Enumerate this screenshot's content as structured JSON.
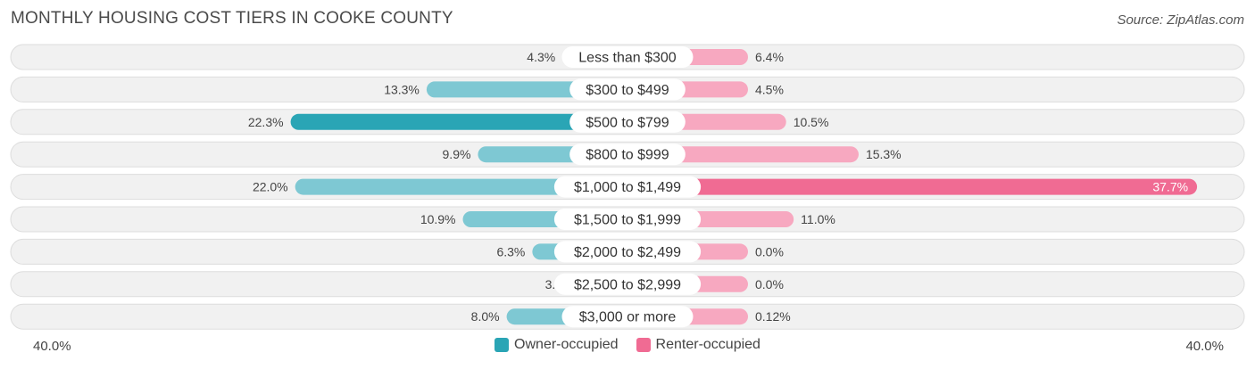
{
  "title": "MONTHLY HOUSING COST TIERS IN COOKE COUNTY",
  "source": "Source: ZipAtlas.com",
  "colors": {
    "owner_dark": "#2aa5b5",
    "owner_light": "#7ec8d3",
    "renter_dark": "#f06b93",
    "renter_light": "#f7a8c0",
    "row_bg": "#f1f1f1",
    "row_border": "#dddddd"
  },
  "chart_data": {
    "type": "bar",
    "orientation": "horizontal-diverging",
    "categories": [
      "Less than $300",
      "$300 to $499",
      "$500 to $799",
      "$800 to $999",
      "$1,000 to $1,499",
      "$1,500 to $1,999",
      "$2,000 to $2,499",
      "$2,500 to $2,999",
      "$3,000 or more"
    ],
    "series": [
      {
        "name": "Owner-occupied",
        "values": [
          4.3,
          13.3,
          22.3,
          9.9,
          22.0,
          10.9,
          6.3,
          3.1,
          8.0
        ],
        "labels": [
          "4.3%",
          "13.3%",
          "22.3%",
          "9.9%",
          "22.0%",
          "10.9%",
          "6.3%",
          "3.1%",
          "8.0%"
        ]
      },
      {
        "name": "Renter-occupied",
        "values": [
          6.4,
          4.5,
          10.5,
          15.3,
          37.7,
          11.0,
          0.0,
          0.0,
          0.12
        ],
        "labels": [
          "6.4%",
          "4.5%",
          "10.5%",
          "15.3%",
          "37.7%",
          "11.0%",
          "0.0%",
          "0.0%",
          "0.12%"
        ]
      }
    ],
    "xlim": [
      -40,
      40
    ],
    "axis_labels": {
      "left": "40.0%",
      "right": "40.0%"
    },
    "legend": [
      "Owner-occupied",
      "Renter-occupied"
    ],
    "legend_position": "bottom-center"
  }
}
